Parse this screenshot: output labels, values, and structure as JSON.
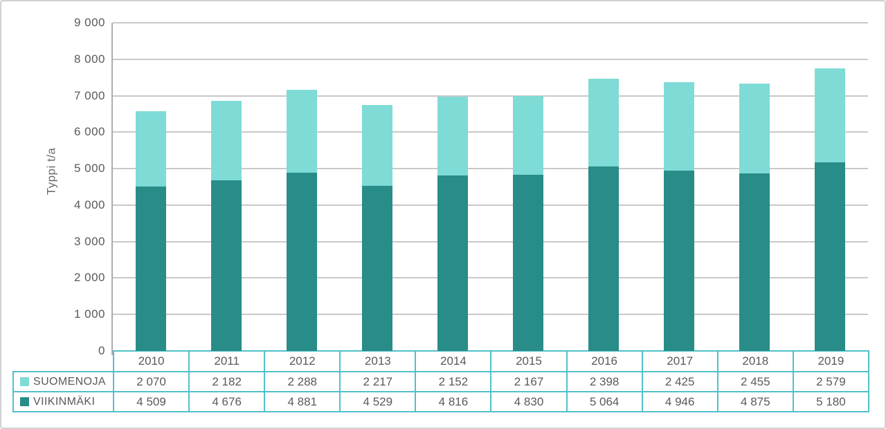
{
  "window": {
    "background": "#FFFFFF",
    "border_color": "#D1D1D1"
  },
  "chart_data": {
    "type": "bar",
    "stacked": true,
    "title": "",
    "ylabel": "Typpi t/a",
    "xlabel": "",
    "ylim": [
      0,
      9000
    ],
    "ytick_step": 1000,
    "y_ticks": [
      "0",
      "1 000",
      "2 000",
      "3 000",
      "4 000",
      "5 000",
      "6 000",
      "7 000",
      "8 000",
      "9 000"
    ],
    "grid": true,
    "legend_position": "table-left",
    "number_format": "space-thousands",
    "categories": [
      "2010",
      "2011",
      "2012",
      "2013",
      "2014",
      "2015",
      "2016",
      "2017",
      "2018",
      "2019"
    ],
    "series": [
      {
        "name": "SUOMENOJA",
        "color": "#7FDBD6",
        "stack": "top",
        "values": [
          2070,
          2182,
          2288,
          2217,
          2152,
          2167,
          2398,
          2425,
          2455,
          2579
        ]
      },
      {
        "name": "VIIKINMÄKI",
        "color": "#288C88",
        "stack": "bottom",
        "values": [
          4509,
          4676,
          4881,
          4529,
          4816,
          4830,
          5064,
          4946,
          4875,
          5180
        ]
      }
    ],
    "table_border_color": "#50C0CA",
    "gridline_color": "#C8C8C8",
    "axis_line_color": "#ADADAD",
    "text_color": "#595959"
  }
}
